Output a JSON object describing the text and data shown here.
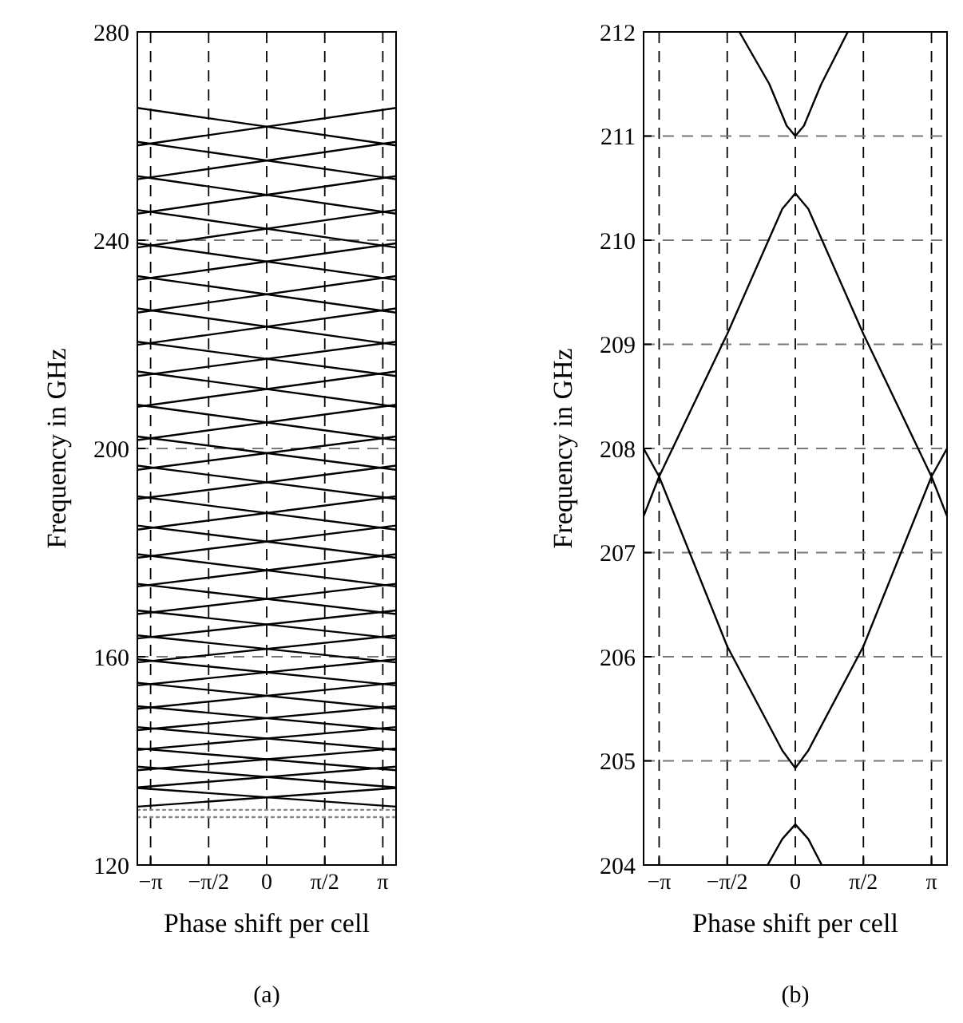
{
  "chart_data": [
    {
      "type": "line",
      "xlabel": "Phase shift per cell",
      "ylabel": "Frequency in GHz",
      "annotations": [
        "(a)"
      ],
      "xlim": [
        -3.5,
        3.5
      ],
      "ylim": [
        120,
        280
      ],
      "xticks": [
        {
          "value": -3.1416,
          "label": "−π"
        },
        {
          "value": -1.5708,
          "label": "−π/2"
        },
        0,
        {
          "value": 1.5708,
          "label": "π/2"
        },
        {
          "value": 3.1416,
          "label": "π"
        }
      ],
      "yticks": [
        120,
        160,
        200,
        240,
        280
      ],
      "grid": true,
      "line_style": "solid",
      "series": [
        {
          "color": "#000000",
          "x": [
            -3.5,
            3.5
          ],
          "values": [
            258.2,
            265.4
          ]
        },
        {
          "color": "#000000",
          "x": [
            -3.5,
            3.5
          ],
          "values": [
            265.4,
            258.2
          ]
        },
        {
          "color": "#000000",
          "x": [
            -3.5,
            3.5
          ],
          "values": [
            251.7,
            258.9
          ]
        },
        {
          "color": "#000000",
          "x": [
            -3.5,
            3.5
          ],
          "values": [
            258.9,
            251.7
          ]
        },
        {
          "color": "#000000",
          "x": [
            -3.5,
            3.5
          ],
          "values": [
            245.1,
            252.3
          ]
        },
        {
          "color": "#000000",
          "x": [
            -3.5,
            3.5
          ],
          "values": [
            252.3,
            245.1
          ]
        },
        {
          "color": "#000000",
          "x": [
            -3.5,
            3.5
          ],
          "values": [
            238.6,
            245.8
          ]
        },
        {
          "color": "#000000",
          "x": [
            -3.5,
            3.5
          ],
          "values": [
            245.8,
            238.6
          ]
        },
        {
          "color": "#000000",
          "x": [
            -3.5,
            3.5
          ],
          "values": [
            232.4,
            239.4
          ]
        },
        {
          "color": "#000000",
          "x": [
            -3.5,
            3.5
          ],
          "values": [
            239.4,
            232.4
          ]
        },
        {
          "color": "#000000",
          "x": [
            -3.5,
            3.5
          ],
          "values": [
            226.1,
            233.1
          ]
        },
        {
          "color": "#000000",
          "x": [
            -3.5,
            3.5
          ],
          "values": [
            233.1,
            226.1
          ]
        },
        {
          "color": "#000000",
          "x": [
            -3.5,
            3.5
          ],
          "values": [
            219.9,
            226.9
          ]
        },
        {
          "color": "#000000",
          "x": [
            -3.5,
            3.5
          ],
          "values": [
            226.9,
            219.9
          ]
        },
        {
          "color": "#000000",
          "x": [
            -3.5,
            3.5
          ],
          "values": [
            213.9,
            220.5
          ]
        },
        {
          "color": "#000000",
          "x": [
            -3.5,
            3.5
          ],
          "values": [
            220.5,
            213.9
          ]
        },
        {
          "color": "#000000",
          "x": [
            -3.5,
            3.5
          ],
          "values": [
            208,
            214.8
          ]
        },
        {
          "color": "#000000",
          "x": [
            -3.5,
            3.5
          ],
          "values": [
            214.8,
            208
          ]
        },
        {
          "color": "#000000",
          "x": [
            -3.5,
            3.5
          ],
          "values": [
            201.6,
            208.4
          ]
        },
        {
          "color": "#000000",
          "x": [
            -3.5,
            3.5
          ],
          "values": [
            208.4,
            201.6
          ]
        },
        {
          "color": "#000000",
          "x": [
            -3.5,
            3.5
          ],
          "values": [
            195.9,
            202.3
          ]
        },
        {
          "color": "#000000",
          "x": [
            -3.5,
            3.5
          ],
          "values": [
            202.3,
            195.9
          ]
        },
        {
          "color": "#000000",
          "x": [
            -3.5,
            3.5
          ],
          "values": [
            190.3,
            196.7
          ]
        },
        {
          "color": "#000000",
          "x": [
            -3.5,
            3.5
          ],
          "values": [
            196.7,
            190.3
          ]
        },
        {
          "color": "#000000",
          "x": [
            -3.5,
            3.5
          ],
          "values": [
            184.4,
            190.8
          ]
        },
        {
          "color": "#000000",
          "x": [
            -3.5,
            3.5
          ],
          "values": [
            190.8,
            184.4
          ]
        },
        {
          "color": "#000000",
          "x": [
            -3.5,
            3.5
          ],
          "values": [
            179,
            185.2
          ]
        },
        {
          "color": "#000000",
          "x": [
            -3.5,
            3.5
          ],
          "values": [
            185.2,
            179
          ]
        },
        {
          "color": "#000000",
          "x": [
            -3.5,
            3.5
          ],
          "values": [
            173.5,
            179.7
          ]
        },
        {
          "color": "#000000",
          "x": [
            -3.5,
            3.5
          ],
          "values": [
            179.7,
            173.5
          ]
        },
        {
          "color": "#000000",
          "x": [
            -3.5,
            3.5
          ],
          "values": [
            168.2,
            174
          ]
        },
        {
          "color": "#000000",
          "x": [
            -3.5,
            3.5
          ],
          "values": [
            174,
            168.2
          ]
        },
        {
          "color": "#000000",
          "x": [
            -3.5,
            3.5
          ],
          "values": [
            163.5,
            168.9
          ]
        },
        {
          "color": "#000000",
          "x": [
            -3.5,
            3.5
          ],
          "values": [
            168.9,
            163.5
          ]
        },
        {
          "color": "#000000",
          "x": [
            -3.5,
            3.5
          ],
          "values": [
            158.9,
            164.1
          ]
        },
        {
          "color": "#000000",
          "x": [
            -3.5,
            3.5
          ],
          "values": [
            164.1,
            158.9
          ]
        },
        {
          "color": "#000000",
          "x": [
            -3.5,
            3.5
          ],
          "values": [
            154.5,
            159.5
          ]
        },
        {
          "color": "#000000",
          "x": [
            -3.5,
            3.5
          ],
          "values": [
            159.5,
            154.5
          ]
        },
        {
          "color": "#000000",
          "x": [
            -3.5,
            3.5
          ],
          "values": [
            150,
            155
          ]
        },
        {
          "color": "#000000",
          "x": [
            -3.5,
            3.5
          ],
          "values": [
            155,
            150
          ]
        },
        {
          "color": "#000000",
          "x": [
            -3.5,
            3.5
          ],
          "values": [
            145.9,
            150.5
          ]
        },
        {
          "color": "#000000",
          "x": [
            -3.5,
            3.5
          ],
          "values": [
            150.5,
            145.9
          ]
        },
        {
          "color": "#000000",
          "x": [
            -3.5,
            3.5
          ],
          "values": [
            142.1,
            146.5
          ]
        },
        {
          "color": "#000000",
          "x": [
            -3.5,
            3.5
          ],
          "values": [
            146.5,
            142.1
          ]
        },
        {
          "color": "#000000",
          "x": [
            -3.5,
            3.5
          ],
          "values": [
            138.2,
            142.4
          ]
        },
        {
          "color": "#000000",
          "x": [
            -3.5,
            3.5
          ],
          "values": [
            142.4,
            138.2
          ]
        },
        {
          "color": "#000000",
          "x": [
            -3.5,
            3.5
          ],
          "values": [
            134.9,
            138.9
          ]
        },
        {
          "color": "#000000",
          "x": [
            -3.5,
            3.5
          ],
          "values": [
            138.9,
            134.9
          ]
        },
        {
          "color": "#000000",
          "x": [
            -3.5,
            3.5
          ],
          "values": [
            131.2,
            134.8
          ]
        },
        {
          "color": "#000000",
          "x": [
            -3.5,
            3.5
          ],
          "values": [
            134.8,
            131.2
          ]
        },
        {
          "color": "#888888",
          "x": [
            -3.5,
            3.5
          ],
          "values": [
            130.6,
            130.6
          ],
          "line_style": "dotted"
        },
        {
          "color": "#888888",
          "x": [
            -3.5,
            3.5
          ],
          "values": [
            129.2,
            129.2
          ],
          "line_style": "dotted"
        }
      ]
    },
    {
      "type": "line",
      "xlabel": "Phase shift per cell",
      "ylabel": "Frequency in GHz",
      "annotations": [
        "(b)"
      ],
      "xlim": [
        -3.5,
        3.5
      ],
      "ylim": [
        204,
        212
      ],
      "xticks": [
        {
          "value": -3.1416,
          "label": "−π"
        },
        {
          "value": -1.5708,
          "label": "−π/2"
        },
        0,
        {
          "value": 1.5708,
          "label": "π/2"
        },
        {
          "value": 3.1416,
          "label": "π"
        }
      ],
      "yticks": [
        204,
        205,
        206,
        207,
        208,
        209,
        210,
        211,
        212
      ],
      "grid": true,
      "line_style": "solid",
      "series": [
        {
          "color": "#000000",
          "x": [
            -3.5,
            -3.1416,
            -1.5708,
            -0.3,
            0,
            0.3,
            1.5708,
            3.1416,
            3.5
          ],
          "values": [
            208.0,
            207.73,
            209.1,
            210.3,
            210.45,
            210.3,
            209.1,
            207.73,
            208.0
          ]
        },
        {
          "color": "#000000",
          "x": [
            -3.5,
            -3.1416,
            -1.5708,
            -0.3,
            0,
            0.3,
            1.5708,
            3.1416,
            3.5
          ],
          "values": [
            207.35,
            207.73,
            206.1,
            205.1,
            204.93,
            205.1,
            206.1,
            207.73,
            207.35
          ]
        },
        {
          "color": "#000000",
          "x": [
            -1.29,
            -0.6,
            -0.2,
            0,
            0.2,
            0.6,
            1.21
          ],
          "values": [
            212,
            211.5,
            211.1,
            211.0,
            211.1,
            211.5,
            212
          ]
        },
        {
          "color": "#000000",
          "x": [
            -0.64,
            -0.3,
            0,
            0.3,
            0.61
          ],
          "values": [
            204,
            204.25,
            204.39,
            204.25,
            204
          ]
        }
      ]
    }
  ]
}
